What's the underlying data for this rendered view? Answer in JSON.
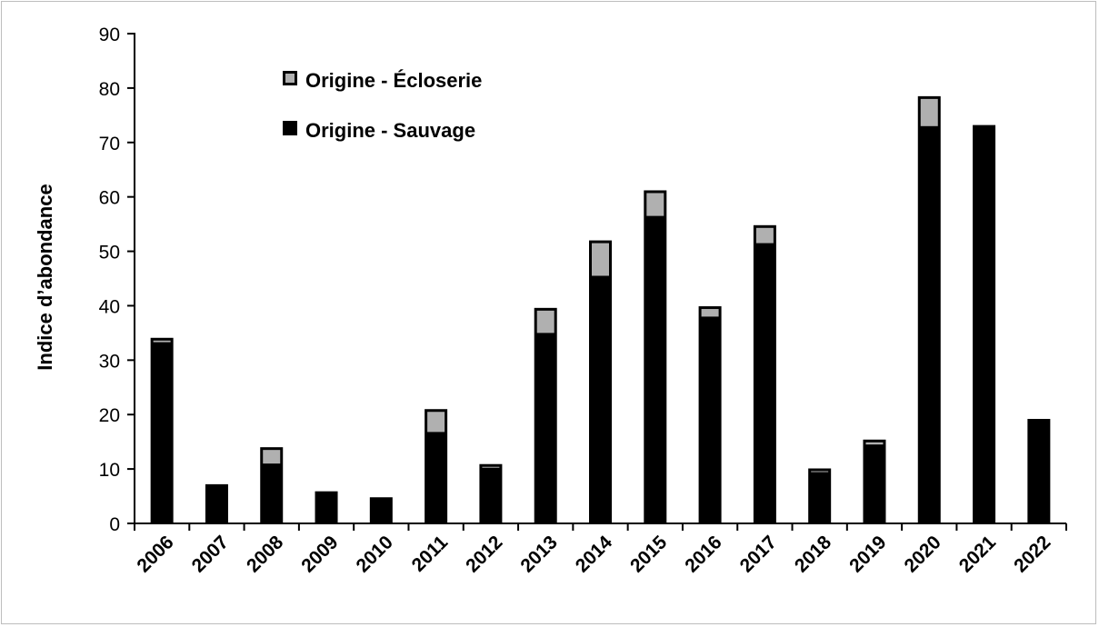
{
  "chart_data": {
    "type": "bar",
    "stacked": true,
    "ylabel": "Indice d’abondance",
    "xlabel": "",
    "ylim": [
      0,
      90
    ],
    "yticks": [
      0,
      10,
      20,
      30,
      40,
      50,
      60,
      70,
      80,
      90
    ],
    "grid": false,
    "legend_position": "top-left",
    "categories": [
      "2006",
      "2007",
      "2008",
      "2009",
      "2010",
      "2011",
      "2012",
      "2013",
      "2014",
      "2015",
      "2016",
      "2017",
      "2018",
      "2019",
      "2020",
      "2021",
      "2022"
    ],
    "series": [
      {
        "name": "Origine - Sauvage",
        "color": "#000000",
        "values": [
          33.3,
          7.2,
          11.0,
          5.9,
          4.8,
          16.8,
          10.3,
          35.0,
          45.5,
          56.5,
          38.0,
          51.5,
          9.5,
          14.5,
          73.0,
          73.2,
          19.2
        ]
      },
      {
        "name": "Origine - Écloserie",
        "color": "#b0b0b0",
        "values": [
          0.8,
          0.0,
          3.0,
          0.0,
          0.0,
          4.2,
          0.6,
          4.6,
          6.5,
          4.7,
          1.9,
          3.3,
          0.6,
          0.9,
          5.5,
          0.0,
          0.0
        ]
      }
    ]
  }
}
